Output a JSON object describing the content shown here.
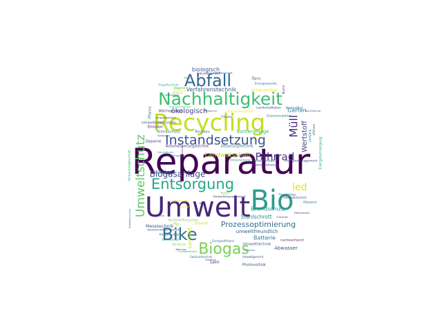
{
  "words": [
    {
      "text": "Reparatur",
      "weight": 100,
      "color": "#440154"
    },
    {
      "text": "Umwelt",
      "weight": 62,
      "color": "#482677"
    },
    {
      "text": "Bio",
      "weight": 58,
      "color": "#2a9d8f"
    },
    {
      "text": "Recycling",
      "weight": 52,
      "color": "#c2df23"
    },
    {
      "text": "Nachhaltigkeit",
      "weight": 38,
      "color": "#3fbc73"
    },
    {
      "text": "Abfall",
      "weight": 36,
      "color": "#31688e"
    },
    {
      "text": "Bike",
      "weight": 35,
      "color": "#2d708e"
    },
    {
      "text": "Biogas",
      "weight": 33,
      "color": "#7ad151"
    },
    {
      "text": "Entsorgung",
      "weight": 31,
      "color": "#22a884"
    },
    {
      "text": "Instandsetzung",
      "weight": 28,
      "color": "#3b528b"
    },
    {
      "text": "Umweltschutz",
      "weight": 26,
      "color": "#5ec962"
    },
    {
      "text": "Müll",
      "weight": 24,
      "color": "#472d7b"
    },
    {
      "text": "Fahrrad",
      "weight": 22,
      "color": "#443983"
    },
    {
      "text": "led",
      "weight": 20,
      "color": "#e2e418"
    },
    {
      "text": "Biogasanlage",
      "weight": 18,
      "color": "#3e4989"
    },
    {
      "text": "Prozessoptimierung",
      "weight": 16,
      "color": "#2c728e"
    },
    {
      "text": "Wertstoff",
      "weight": 14,
      "color": "#414487"
    },
    {
      "text": "ökologisch",
      "weight": 14,
      "color": "#404688"
    },
    {
      "text": "Landwirtschaft",
      "weight": 13,
      "color": "#b5de2b"
    },
    {
      "text": "Verfahrenstechnik",
      "weight": 12,
      "color": "#33638d"
    },
    {
      "text": "biologisch",
      "weight": 12,
      "color": "#39568c"
    },
    {
      "text": "Batterie",
      "weight": 12,
      "color": "#26828e"
    },
    {
      "text": "Garten",
      "weight": 12,
      "color": "#24868e"
    },
    {
      "text": "Brandschutz",
      "weight": 11,
      "color": "#1f988b"
    },
    {
      "text": "Stahlschrott",
      "weight": 11,
      "color": "#228c8d"
    },
    {
      "text": "umweltfreundlich",
      "weight": 10,
      "color": "#355f8d"
    },
    {
      "text": "Abwasser",
      "weight": 10,
      "color": "#3d4d8a"
    },
    {
      "text": "Landwirt",
      "weight": 10,
      "color": "#bddf26"
    },
    {
      "text": "Leichtbau",
      "weight": 10,
      "color": "#27808e"
    },
    {
      "text": "Sortieranlage",
      "weight": 10,
      "color": "#35b779"
    },
    {
      "text": "Energieversorgung",
      "weight": 8,
      "color": "#20a386"
    },
    {
      "text": "erneuerbar",
      "weight": 9,
      "color": "#fde725"
    },
    {
      "text": "Dosieranlage",
      "weight": 8,
      "color": "#1fa188"
    },
    {
      "text": "Messtechnik",
      "weight": 9,
      "color": "#3a548c"
    },
    {
      "text": "Lein",
      "weight": 9,
      "color": "#46327e"
    },
    {
      "text": "Photovoltaik",
      "weight": 8,
      "color": "#3e4a89"
    },
    {
      "text": "Umwelttechnik",
      "weight": 8,
      "color": "#38598c"
    },
    {
      "text": "Klimaschutz",
      "weight": 8,
      "color": "#2e6e8e"
    },
    {
      "text": "Deponie",
      "weight": 8,
      "color": "#453781"
    },
    {
      "text": "Emission",
      "weight": 7,
      "color": "#471164"
    },
    {
      "text": "Umweltbewusstsein",
      "weight": 7,
      "color": "#38598c"
    },
    {
      "text": "Wärmepumpe",
      "weight": 7,
      "color": "#3f4889"
    },
    {
      "text": "Pflanze",
      "weight": 7,
      "color": "#2f6c8e"
    },
    {
      "text": "Rückbau",
      "weight": 7,
      "color": "#31678e"
    },
    {
      "text": "Steuerungstechnik",
      "weight": 7,
      "color": "#2c718e"
    },
    {
      "text": "Automatisierungstechnik",
      "weight": 7,
      "color": "#46337f"
    },
    {
      "text": "Regeltechnik",
      "weight": 7,
      "color": "#3aba76"
    },
    {
      "text": "Verpackungstechnik",
      "weight": 6,
      "color": "#2ab07f"
    },
    {
      "text": "Elektromobilität",
      "weight": 6,
      "color": "#23898e"
    },
    {
      "text": "Energiewende",
      "weight": 6,
      "color": "#2b758e"
    },
    {
      "text": "Öpnv",
      "weight": 6,
      "color": "#3b518b"
    },
    {
      "text": "Landschaftsbau",
      "weight": 6,
      "color": "#453882"
    },
    {
      "text": "Filtration",
      "weight": 6,
      "color": "#32658e"
    },
    {
      "text": "Kreislaufwirtschaft",
      "weight": 5,
      "color": "#fde725"
    },
    {
      "text": "Sekundärrohstoff",
      "weight": 5,
      "color": "#482475"
    },
    {
      "text": "Energiemanagement",
      "weight": 6,
      "color": "#3e4c8a"
    },
    {
      "text": "Forstwirtschaft",
      "weight": 6,
      "color": "#3c4f8a"
    },
    {
      "text": "Schienenfahrzeug",
      "weight": 6,
      "color": "#424186"
    },
    {
      "text": "Pp",
      "weight": 8,
      "color": "#a2da37"
    },
    {
      "text": "Schrott",
      "weight": 7,
      "color": "#c8e020"
    },
    {
      "text": "Altpapier",
      "weight": 6,
      "color": "#2a788e"
    },
    {
      "text": "Fensterbau",
      "weight": 6,
      "color": "#365c8d"
    },
    {
      "text": "Sekundärtechnik",
      "weight": 5,
      "color": "#3d4e8a"
    },
    {
      "text": "Kunststoffrecycling",
      "weight": 6,
      "color": "#74d055"
    },
    {
      "text": "Umweltmanagement",
      "weight": 6,
      "color": "#404588"
    },
    {
      "text": "Elektroschrott",
      "weight": 5,
      "color": "#fde725"
    },
    {
      "text": "Roller",
      "weight": 6,
      "color": "#84d44b"
    },
    {
      "text": "ressourcenschonend",
      "weight": 6,
      "color": "#3c508b"
    },
    {
      "text": "Klimaneutral",
      "weight": 6,
      "color": "#2f6b8e"
    },
    {
      "text": "Elektromobil",
      "weight": 5,
      "color": "#29af7f"
    },
    {
      "text": "Windkraft",
      "weight": 5,
      "color": "#8bd646"
    },
    {
      "text": "nachwachsend",
      "weight": 6,
      "color": "#481769"
    },
    {
      "text": "Energieeffizienz",
      "weight": 5,
      "color": "#2e6f8e"
    },
    {
      "text": "Gebäudetechnik",
      "weight": 5,
      "color": "#277f8e"
    },
    {
      "text": "Umweltgerecht",
      "weight": 5,
      "color": "#3b528b"
    },
    {
      "text": "Biomasse",
      "weight": 5,
      "color": "#fde725"
    },
    {
      "text": "Biogene",
      "weight": 5,
      "color": "#31b57b"
    },
    {
      "text": "Biotonne",
      "weight": 4,
      "color": "#9bd93c"
    },
    {
      "text": "Elektromotor",
      "weight": 4,
      "color": "#433e85"
    },
    {
      "text": "Wertstoffhof",
      "weight": 5,
      "color": "#2f6b8e"
    },
    {
      "text": "Abfallwirtschaft",
      "weight": 4,
      "color": "#2d718e"
    },
    {
      "text": "Verwertung",
      "weight": 4,
      "color": "#481b6d"
    },
    {
      "text": "offshore",
      "weight": 5,
      "color": "#3b528b"
    },
    {
      "text": "Lastgang",
      "weight": 5,
      "color": "#2a788e"
    },
    {
      "text": "Blume",
      "weight": 5,
      "color": "#443a83"
    },
    {
      "text": "Gartenbau",
      "weight": 4,
      "color": "#414487"
    },
    {
      "text": "Holzverarbeitung",
      "weight": 4,
      "color": "#3fbc73"
    },
    {
      "text": "Recyclingpapier",
      "weight": 4,
      "color": "#2c718e"
    },
    {
      "text": "Solar",
      "weight": 4,
      "color": "#2b748e"
    },
    {
      "text": "Sanierung",
      "weight": 4,
      "color": "#3e4989"
    },
    {
      "text": "Vermeidung",
      "weight": 4,
      "color": "#365d8d"
    },
    {
      "text": "Fahrradkurier",
      "weight": 4,
      "color": "#20928c"
    },
    {
      "text": "Umweltstandard",
      "weight": 4,
      "color": "#472c7a"
    },
    {
      "text": "Entsorger",
      "weight": 4,
      "color": "#3b518b"
    },
    {
      "text": "Nahrung",
      "weight": 4,
      "color": "#481467"
    },
    {
      "text": "Zero",
      "weight": 4,
      "color": "#3e4a89"
    },
    {
      "text": "Neu",
      "weight": 4,
      "color": "#482878"
    },
    {
      "text": "Bioabfall",
      "weight": 4,
      "color": "#3b528b"
    },
    {
      "text": "Gärrest",
      "weight": 4,
      "color": "#fde725"
    },
    {
      "text": "Ökostrom",
      "weight": 4,
      "color": "#2e6d8e"
    },
    {
      "text": "Nachrüstung",
      "weight": 4,
      "color": "#365d8d"
    },
    {
      "text": "Ressource",
      "weight": 4,
      "color": "#3b518b"
    },
    {
      "text": "Energieeffizient",
      "weight": 4,
      "color": "#35b779"
    },
    {
      "text": "Gewässerschutz",
      "weight": 4,
      "color": "#2a788e"
    }
  ]
}
